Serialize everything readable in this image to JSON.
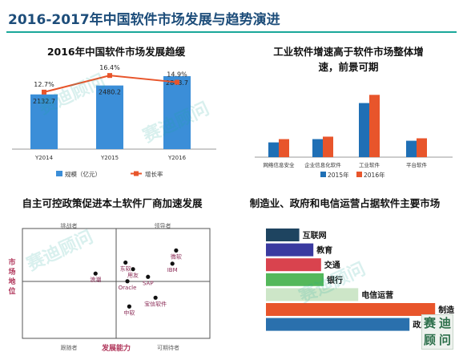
{
  "header": {
    "title": "2016-2017年中国软件市场发展与趋势演进"
  },
  "watermark": "赛迪顾问",
  "logo": {
    "line1": "赛",
    "line2": "迪",
    "line3": "顾",
    "line4": "问"
  },
  "panels": {
    "top_left": {
      "title": "2016年中国软件市场发展趋缓"
    },
    "top_right": {
      "title_line1": "工业软件增速高于软件市场整体增",
      "title_line2": "速，前景可期"
    },
    "bottom_left": {
      "title": "自主可控政策促进本土软件厂商加速发展"
    },
    "bottom_right": {
      "title": "制造业、政府和电信运营占据软件主要市场"
    }
  },
  "chart_data": [
    {
      "type": "bar",
      "title": "2016年中国软件市场发展趋缓",
      "categories": [
        "Y2014",
        "Y2015",
        "Y2016"
      ],
      "series": [
        {
          "name": "规模（亿元）",
          "kind": "bar",
          "values": [
            2132.7,
            2480.2,
            2843.7
          ],
          "labels": [
            "2132.7",
            "2480.2",
            "2843.7"
          ],
          "color": "#3b8ed8"
        },
        {
          "name": "增长率",
          "kind": "line",
          "values": [
            12.7,
            16.4,
            14.9
          ],
          "labels": [
            "12.7%",
            "16.4%",
            "14.9%"
          ],
          "color": "#e8552b"
        }
      ],
      "ylim": [
        0,
        3500
      ],
      "y2lim": [
        0,
        20
      ],
      "legend": "bottom"
    },
    {
      "type": "bar",
      "title": "工业软件增速高于软件市场整体增速，前景可期",
      "categories": [
        "网络信息安全",
        "企业信息化软件",
        "工业软件",
        "平台软件"
      ],
      "series": [
        {
          "name": "2015年",
          "values": [
            9,
            11,
            33,
            10
          ],
          "color": "#1f6fb5"
        },
        {
          "name": "2016年",
          "values": [
            11,
            12.5,
            38,
            11.5
          ],
          "color": "#e8552b"
        }
      ],
      "ylim": [
        0,
        45
      ],
      "legend": "bottom"
    },
    {
      "type": "scatter",
      "title": "自主可控政策促进本土软件厂商加速发展",
      "xlabel": "发展能力",
      "ylabel": "市场地位",
      "quadrants": {
        "top_left": "挑战者",
        "top_right": "领导者",
        "bottom_left": "跟随者",
        "bottom_right": "可期待者"
      },
      "xlim": [
        0,
        10
      ],
      "ylim": [
        0,
        10
      ],
      "points": [
        {
          "label": "微软",
          "x": 8.2,
          "y": 8.0
        },
        {
          "label": "IBM",
          "x": 8.0,
          "y": 6.8
        },
        {
          "label": "东软",
          "x": 5.5,
          "y": 6.9
        },
        {
          "label": "用友",
          "x": 5.9,
          "y": 6.3
        },
        {
          "label": "SAP",
          "x": 6.7,
          "y": 5.6
        },
        {
          "label": "Oracle",
          "x": 5.6,
          "y": 5.2
        },
        {
          "label": "浪潮",
          "x": 3.9,
          "y": 5.9
        },
        {
          "label": "宝信软件",
          "x": 7.1,
          "y": 3.7
        },
        {
          "label": "中软",
          "x": 5.7,
          "y": 2.9
        }
      ]
    },
    {
      "type": "bar",
      "title": "制造业、政府和电信运营占据软件主要市场",
      "orientation": "horizontal",
      "categories": [
        "互联网",
        "教育",
        "交通",
        "银行",
        "电信运营",
        "制造",
        "政府"
      ],
      "values": [
        13,
        18.5,
        21.5,
        22.5,
        36,
        66,
        56
      ],
      "colors": [
        "#1e4460",
        "#3a3aa0",
        "#d9434e",
        "#54b85b",
        "#cde6c8",
        "#e8552b",
        "#2a70ad"
      ],
      "xlim": [
        0,
        75
      ]
    }
  ]
}
